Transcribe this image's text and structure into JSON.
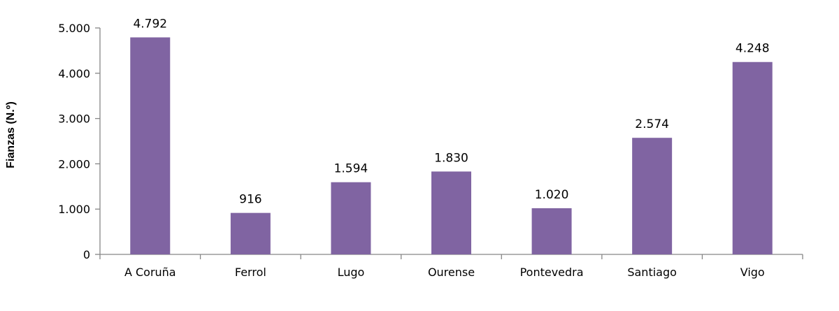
{
  "chart_data": {
    "type": "bar",
    "title": "",
    "xlabel": "",
    "ylabel": "Fianzas (N.º)",
    "categories": [
      "A Coruña",
      "Ferrol",
      "Lugo",
      "Ourense",
      "Pontevedra",
      "Santiago",
      "Vigo"
    ],
    "values": [
      4792,
      916,
      1594,
      1830,
      1020,
      2574,
      4248
    ],
    "value_labels": [
      "4.792",
      "916",
      "1.594",
      "1.830",
      "1.020",
      "2.574",
      "4.248"
    ],
    "ylim": [
      0,
      5000
    ],
    "yticks": [
      0,
      1000,
      2000,
      3000,
      4000,
      5000
    ],
    "ytick_labels": [
      "0",
      "1.000",
      "2.000",
      "3.000",
      "4.000",
      "5.000"
    ],
    "grid": false,
    "legend": "none",
    "bar_color": "#8064a2",
    "axis_color": "#868686"
  }
}
